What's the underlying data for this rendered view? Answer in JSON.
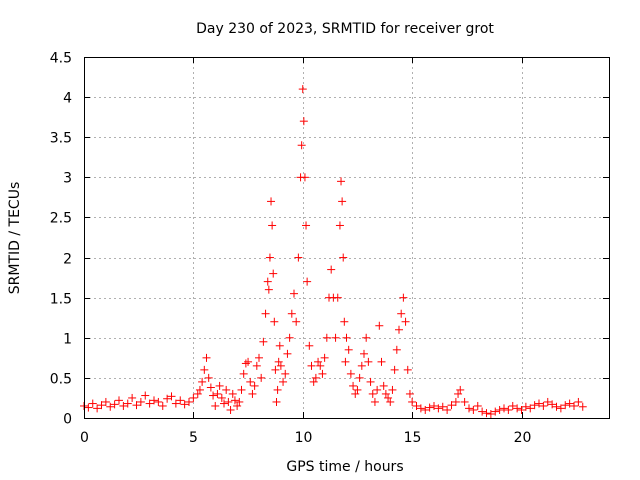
{
  "chart_data": {
    "type": "scatter",
    "title": "Day 230 of 2023, SRMTID for receiver grot",
    "xlabel": "GPS time / hours",
    "ylabel": "SRMTID / TECUs",
    "xlim": [
      0,
      24
    ],
    "ylim": [
      0,
      4.5
    ],
    "xticks": [
      0,
      5,
      10,
      15,
      20
    ],
    "xtick_labels": [
      "0",
      "5",
      "10",
      "15",
      "20"
    ],
    "yticks": [
      0,
      0.5,
      1,
      1.5,
      2,
      2.5,
      3,
      3.5,
      4,
      4.5
    ],
    "ytick_labels": [
      "0",
      "0.5",
      "1",
      "1.5",
      "2",
      "2.5",
      "3",
      "3.5",
      "4",
      "4.5"
    ],
    "grid": true,
    "marker": "+",
    "color": "#ff0000",
    "series": [
      {
        "name": "SRMTID",
        "x": [
          0.0,
          0.2,
          0.4,
          0.6,
          0.8,
          1.0,
          1.2,
          1.4,
          1.6,
          1.8,
          2.0,
          2.2,
          2.4,
          2.6,
          2.8,
          3.0,
          3.2,
          3.4,
          3.6,
          3.8,
          4.0,
          4.2,
          4.4,
          4.6,
          4.8,
          5.0,
          5.2,
          5.3,
          5.4,
          5.5,
          5.6,
          5.7,
          5.8,
          5.9,
          6.0,
          6.1,
          6.2,
          6.3,
          6.4,
          6.5,
          6.6,
          6.7,
          6.8,
          6.9,
          7.0,
          7.1,
          7.2,
          7.3,
          7.4,
          7.5,
          7.6,
          7.7,
          7.8,
          7.9,
          8.0,
          8.1,
          8.2,
          8.3,
          8.4,
          8.45,
          8.5,
          8.55,
          8.6,
          8.65,
          8.7,
          8.75,
          8.8,
          8.85,
          8.9,
          8.95,
          9.0,
          9.1,
          9.2,
          9.3,
          9.4,
          9.5,
          9.6,
          9.7,
          9.8,
          9.9,
          9.95,
          10.0,
          10.05,
          10.1,
          10.15,
          10.2,
          10.3,
          10.4,
          10.5,
          10.6,
          10.7,
          10.8,
          10.9,
          11.0,
          11.1,
          11.2,
          11.3,
          11.4,
          11.5,
          11.6,
          11.7,
          11.75,
          11.8,
          11.85,
          11.9,
          11.95,
          12.0,
          12.1,
          12.2,
          12.3,
          12.4,
          12.5,
          12.6,
          12.7,
          12.8,
          12.9,
          13.0,
          13.1,
          13.2,
          13.3,
          13.4,
          13.5,
          13.6,
          13.7,
          13.8,
          13.9,
          14.0,
          14.1,
          14.2,
          14.3,
          14.4,
          14.5,
          14.6,
          14.7,
          14.8,
          14.9,
          15.0,
          15.2,
          15.4,
          15.6,
          15.8,
          16.0,
          16.2,
          16.4,
          16.6,
          16.8,
          17.0,
          17.1,
          17.2,
          17.4,
          17.6,
          17.8,
          18.0,
          18.2,
          18.4,
          18.6,
          18.8,
          19.0,
          19.2,
          19.4,
          19.6,
          19.8,
          20.0,
          20.2,
          20.4,
          20.6,
          20.8,
          21.0,
          21.2,
          21.4,
          21.6,
          21.8,
          22.0,
          22.2,
          22.4,
          22.6,
          22.8
        ],
        "y": [
          0.15,
          0.13,
          0.18,
          0.12,
          0.16,
          0.2,
          0.14,
          0.17,
          0.22,
          0.15,
          0.18,
          0.25,
          0.16,
          0.2,
          0.28,
          0.18,
          0.22,
          0.2,
          0.15,
          0.24,
          0.27,
          0.18,
          0.22,
          0.17,
          0.2,
          0.25,
          0.3,
          0.35,
          0.45,
          0.6,
          0.75,
          0.5,
          0.38,
          0.28,
          0.15,
          0.3,
          0.4,
          0.25,
          0.18,
          0.35,
          0.2,
          0.1,
          0.3,
          0.22,
          0.15,
          0.2,
          0.35,
          0.55,
          0.68,
          0.7,
          0.45,
          0.3,
          0.4,
          0.65,
          0.75,
          0.5,
          0.95,
          1.3,
          1.7,
          1.6,
          2.0,
          2.7,
          2.4,
          1.8,
          1.2,
          0.6,
          0.2,
          0.35,
          0.7,
          0.9,
          0.65,
          0.45,
          0.55,
          0.8,
          1.0,
          1.3,
          1.55,
          1.2,
          2.0,
          3.0,
          3.4,
          4.1,
          3.7,
          3.0,
          2.4,
          1.7,
          0.9,
          0.65,
          0.45,
          0.5,
          0.7,
          0.65,
          0.55,
          0.75,
          1.0,
          1.5,
          1.85,
          1.5,
          1.0,
          1.5,
          2.4,
          2.95,
          2.7,
          2.0,
          1.2,
          0.7,
          1.0,
          0.85,
          0.55,
          0.4,
          0.3,
          0.35,
          0.5,
          0.65,
          0.8,
          1.0,
          0.7,
          0.45,
          0.3,
          0.2,
          0.35,
          1.15,
          0.7,
          0.4,
          0.3,
          0.25,
          0.2,
          0.35,
          0.6,
          0.85,
          1.1,
          1.3,
          1.5,
          1.2,
          0.6,
          0.3,
          0.2,
          0.15,
          0.12,
          0.1,
          0.13,
          0.15,
          0.12,
          0.14,
          0.1,
          0.16,
          0.2,
          0.3,
          0.35,
          0.2,
          0.12,
          0.1,
          0.15,
          0.08,
          0.06,
          0.05,
          0.08,
          0.1,
          0.12,
          0.1,
          0.15,
          0.12,
          0.1,
          0.14,
          0.12,
          0.16,
          0.18,
          0.15,
          0.2,
          0.17,
          0.14,
          0.12,
          0.16,
          0.18,
          0.15,
          0.2,
          0.14
        ]
      }
    ]
  }
}
